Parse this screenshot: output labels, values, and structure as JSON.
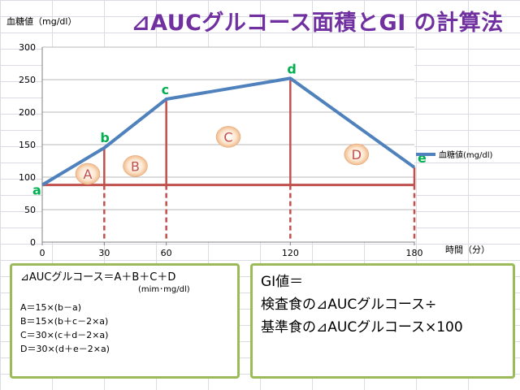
{
  "title": "⊿AUCグルコース面積とGI の計算法",
  "chart_data": {
    "type": "line",
    "ylabel": "血糖値（mg/dl）",
    "xlabel": "時間（分）",
    "ylim": [
      0,
      300
    ],
    "xlim": [
      0,
      180
    ],
    "yticks": [
      0,
      50,
      100,
      150,
      200,
      250,
      300
    ],
    "xticks": [
      0,
      30,
      60,
      120,
      180
    ],
    "grid": true,
    "legend_position": "right",
    "series": [
      {
        "name": "血糖値(mg/dl)",
        "x": [
          0,
          30,
          60,
          120,
          180
        ],
        "values": [
          88,
          145,
          220,
          252,
          115
        ],
        "color": "#4f81bd"
      }
    ],
    "baseline": 88,
    "point_labels": [
      "a",
      "b",
      "c",
      "d",
      "e"
    ],
    "area_labels": [
      {
        "label": "A",
        "x": 22,
        "y": 105
      },
      {
        "label": "B",
        "x": 45,
        "y": 117
      },
      {
        "label": "C",
        "x": 90,
        "y": 162
      },
      {
        "label": "D",
        "x": 152,
        "y": 135
      }
    ],
    "colors": {
      "line": "#4f81bd",
      "guide": "#c0504d",
      "point_label": "#00b050",
      "area_label": "#c0504d"
    }
  },
  "formula": {
    "heading": "⊿AUCグルコース＝A＋B＋C＋D",
    "unit": "(mim･mg/dl)",
    "lines": [
      "A＝15×(b－a)",
      "B＝15×(b＋c－2×a)",
      "C＝30×(c＋d－2×a)",
      "D＝30×(d＋e－2×a)"
    ]
  },
  "gi": {
    "lines": [
      "GI値＝",
      "検査食の⊿AUCグルコース÷",
      "基準食の⊿AUCグルコース×100"
    ]
  }
}
